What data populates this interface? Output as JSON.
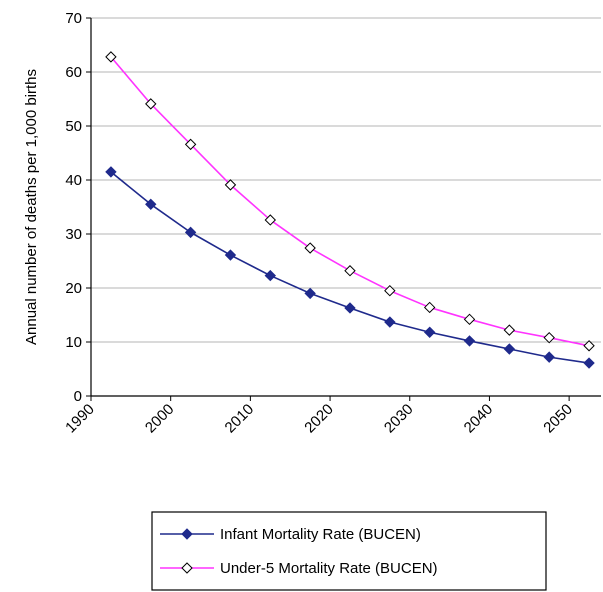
{
  "chart_data": {
    "type": "line",
    "title": "",
    "xlabel": "",
    "ylabel": "Annual number of deaths per 1,000 births",
    "xlim": [
      1990,
      2054
    ],
    "ylim": [
      0,
      70
    ],
    "x_ticks": [
      1990,
      2000,
      2010,
      2020,
      2030,
      2040,
      2050
    ],
    "y_ticks": [
      0,
      10,
      20,
      30,
      40,
      50,
      60,
      70
    ],
    "grid": "horizontal",
    "legend_position": "bottom",
    "x": [
      1992.5,
      1997.5,
      2002.5,
      2007.5,
      2012.5,
      2017.5,
      2022.5,
      2027.5,
      2032.5,
      2037.5,
      2042.5,
      2047.5,
      2052.5
    ],
    "series": [
      {
        "name": "Infant Mortality Rate (BUCEN)",
        "color": "#1f2a8c",
        "marker": "filled-diamond",
        "values": [
          41.5,
          35.5,
          30.3,
          26.1,
          22.3,
          19.0,
          16.3,
          13.7,
          11.8,
          10.2,
          8.7,
          7.2,
          6.1
        ]
      },
      {
        "name": "Under-5 Mortality Rate (BUCEN)",
        "color": "#ff33ff",
        "marker": "open-diamond",
        "values": [
          62.8,
          54.1,
          46.6,
          39.1,
          32.6,
          27.4,
          23.2,
          19.5,
          16.4,
          14.2,
          12.2,
          10.8,
          9.3
        ]
      }
    ]
  }
}
